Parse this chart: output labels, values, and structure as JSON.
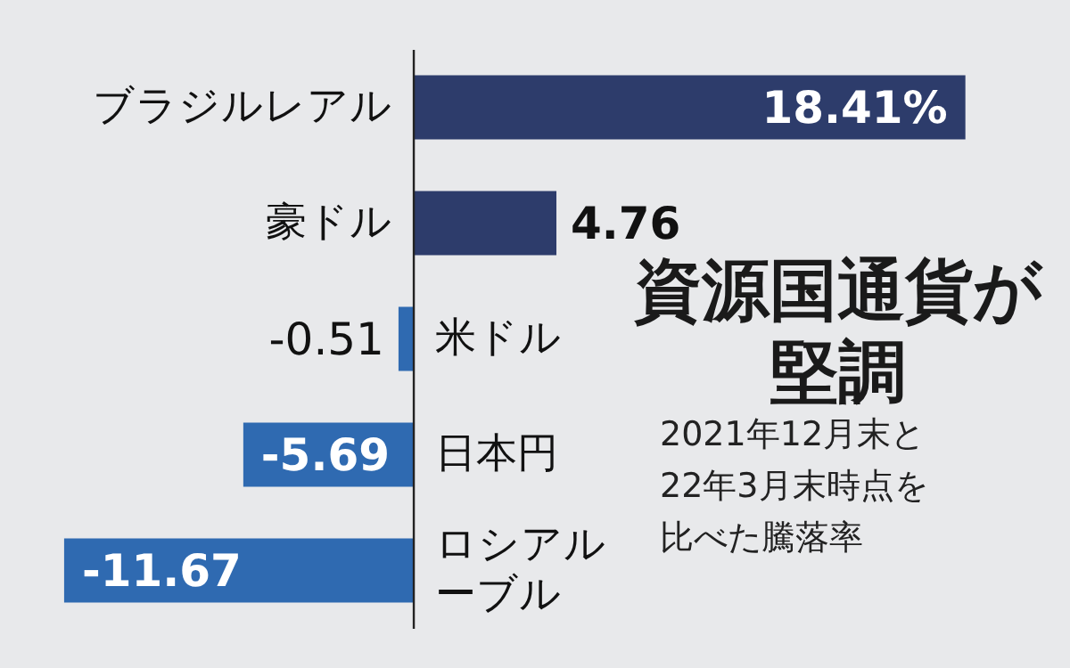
{
  "chart_data": {
    "type": "bar",
    "orientation": "horizontal",
    "title": "資源国通貨が堅調",
    "subtitle": "2021年12月末と22年3月末時点を比べた騰落率",
    "categories": [
      "ブラジルレアル",
      "豪ドル",
      "米ドル",
      "日本円",
      "ロシアルーブル"
    ],
    "values": [
      18.41,
      4.76,
      -0.51,
      -5.69,
      -11.67
    ],
    "colors": [
      "#2d3c6b",
      "#2d3c6b",
      "#2f6ab1",
      "#2f6ab1",
      "#2f6ab1"
    ],
    "value_labels": [
      "18.41%",
      "4.76",
      "-0.51",
      "-5.69",
      "-11.67"
    ]
  }
}
